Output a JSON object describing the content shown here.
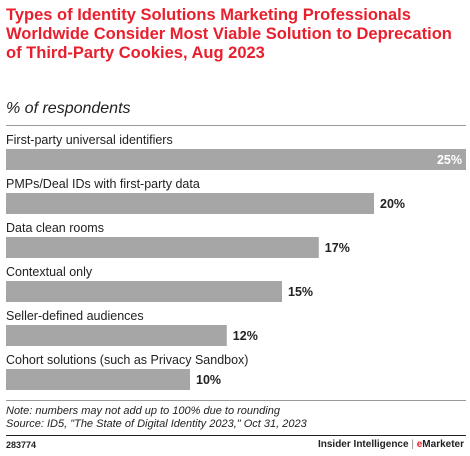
{
  "header": {
    "title": "Types of Identity Solutions Marketing Professionals Worldwide Consider Most Viable Solution to Deprecation of Third-Party Cookies, Aug 2023",
    "subtitle": "% of respondents"
  },
  "chart_data": {
    "type": "bar",
    "orientation": "horizontal",
    "title": "Types of Identity Solutions Marketing Professionals Worldwide Consider Most Viable Solution to Deprecation of Third-Party Cookies, Aug 2023",
    "subtitle": "% of respondents",
    "categories": [
      "First-party universal identifiers",
      "PMPs/Deal IDs with first-party data",
      "Data clean rooms",
      "Contextual only",
      "Seller-defined audiences",
      "Cohort solutions (such as Privacy Sandbox)"
    ],
    "values": [
      25,
      20,
      17,
      15,
      12,
      10
    ],
    "value_labels": [
      "25%",
      "20%",
      "17%",
      "15%",
      "12%",
      "10%"
    ],
    "xlim": [
      0,
      25
    ],
    "bar_color": "#a6a6a6",
    "label_color_inside": "#ffffff",
    "grid": false,
    "legend": "none"
  },
  "footer": {
    "note": "Note: numbers may not add up to 100% due to rounding",
    "source": "Source: ID5, \"The State of Digital Identity 2023,\" Oct 31, 2023",
    "code": "283774",
    "brand_left": "Insider Intelligence",
    "brand_sep": "|",
    "brand_right_e": "e",
    "brand_right_rest": "Marketer"
  },
  "colors": {
    "accent": "#e8202e",
    "bar": "#a6a6a6",
    "text": "#222222"
  }
}
